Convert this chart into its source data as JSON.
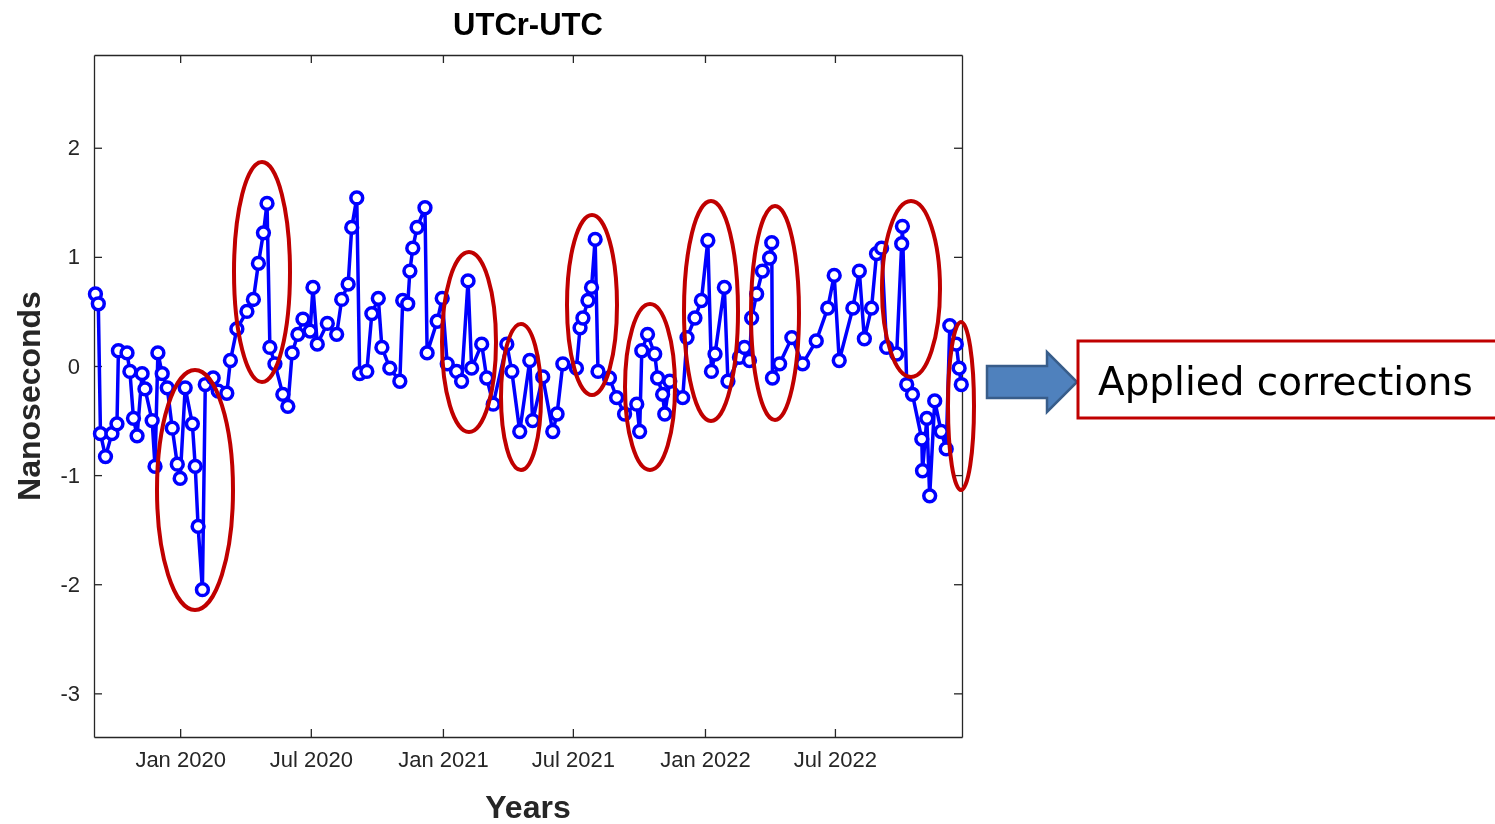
{
  "chart_data": {
    "type": "line",
    "title": "UTCr-UTC",
    "xlabel": "Years",
    "ylabel": "Nanoseconds",
    "annotations": [
      "Applied corrections"
    ],
    "xlim": [
      "2019-09-03",
      "2022-12-25"
    ],
    "xticks": [
      {
        "value": "2020-01-01",
        "label": "Jan 2020"
      },
      {
        "value": "2020-07-01",
        "label": "Jul 2020"
      },
      {
        "value": "2021-01-01",
        "label": "Jan 2021"
      },
      {
        "value": "2021-07-01",
        "label": "Jul 2021"
      },
      {
        "value": "2022-01-01",
        "label": "Jan 2022"
      },
      {
        "value": "2022-07-01",
        "label": "Jul 2022"
      }
    ],
    "ylim": [
      -3.4,
      2.85
    ],
    "yticks": [
      -3,
      -2,
      -1,
      0,
      1,
      2
    ],
    "grid": false,
    "marker": "circle",
    "line_style": "solid",
    "series": [
      {
        "color": "#0000ff",
        "x": [
          "2019-09-05",
          "2019-09-09",
          "2019-09-12",
          "2019-09-19",
          "2019-09-28",
          "2019-10-05",
          "2019-10-07",
          "2019-10-19",
          "2019-10-23",
          "2019-10-28",
          "2019-11-02",
          "2019-11-09",
          "2019-11-13",
          "2019-11-23",
          "2019-11-27",
          "2019-12-01",
          "2019-12-07",
          "2019-12-14",
          "2019-12-21",
          "2019-12-28",
          "2020-01-01",
          "2020-01-08",
          "2020-01-18",
          "2020-01-22",
          "2020-01-26",
          "2020-02-01",
          "2020-02-05",
          "2020-02-16",
          "2020-02-23",
          "2020-03-06",
          "2020-03-11",
          "2020-03-20",
          "2020-04-03",
          "2020-04-12",
          "2020-04-19",
          "2020-04-26",
          "2020-05-01",
          "2020-05-05",
          "2020-05-12",
          "2020-05-23",
          "2020-05-30",
          "2020-06-05",
          "2020-06-13",
          "2020-06-20",
          "2020-06-30",
          "2020-07-04",
          "2020-07-10",
          "2020-07-24",
          "2020-08-06",
          "2020-08-13",
          "2020-08-22",
          "2020-08-27",
          "2020-09-03",
          "2020-09-07",
          "2020-09-17",
          "2020-09-24",
          "2020-10-03",
          "2020-10-08",
          "2020-10-19",
          "2020-11-02",
          "2020-11-06",
          "2020-11-13",
          "2020-11-16",
          "2020-11-20",
          "2020-11-26",
          "2020-12-07",
          "2020-12-10",
          "2020-12-24",
          "2020-12-31",
          "2021-01-07",
          "2021-01-20",
          "2021-01-27",
          "2021-02-05",
          "2021-02-10",
          "2021-02-24",
          "2021-03-03",
          "2021-03-12",
          "2021-03-31",
          "2021-04-07",
          "2021-04-18",
          "2021-05-02",
          "2021-05-06",
          "2021-05-20",
          "2021-06-03",
          "2021-06-09",
          "2021-06-17",
          "2021-07-06",
          "2021-07-11",
          "2021-07-15",
          "2021-07-22",
          "2021-07-27",
          "2021-08-01",
          "2021-08-05",
          "2021-08-21",
          "2021-08-31",
          "2021-09-11",
          "2021-09-28",
          "2021-10-02",
          "2021-10-05",
          "2021-10-13",
          "2021-10-23",
          "2021-10-27",
          "2021-11-03",
          "2021-11-06",
          "2021-11-13",
          "2021-12-01",
          "2021-12-07",
          "2021-12-18",
          "2021-12-27",
          "2022-01-05",
          "2022-01-10",
          "2022-01-15",
          "2022-01-28",
          "2022-02-02",
          "2022-02-18",
          "2022-02-25",
          "2022-03-04",
          "2022-03-07",
          "2022-03-14",
          "2022-03-22",
          "2022-04-01",
          "2022-04-04",
          "2022-04-05",
          "2022-04-15",
          "2022-05-02",
          "2022-05-17",
          "2022-06-05",
          "2022-06-21",
          "2022-06-30",
          "2022-07-07",
          "2022-07-26",
          "2022-08-04",
          "2022-08-11",
          "2022-08-21",
          "2022-08-28",
          "2022-09-04",
          "2022-09-11",
          "2022-09-25",
          "2022-10-02",
          "2022-10-03",
          "2022-10-09",
          "2022-10-17",
          "2022-10-30",
          "2022-10-31",
          "2022-11-06",
          "2022-11-10",
          "2022-11-17",
          "2022-11-26",
          "2022-12-03",
          "2022-12-08",
          "2022-12-17",
          "2022-12-21",
          "2022-12-24"
        ],
        "values": [
          0.66,
          0.57,
          -0.62,
          -0.83,
          -0.62,
          -0.53,
          0.14,
          0.12,
          -0.05,
          -0.48,
          -0.64,
          -0.07,
          -0.21,
          -0.5,
          -0.92,
          0.12,
          -0.07,
          -0.2,
          -0.57,
          -0.9,
          -1.03,
          -0.2,
          -0.53,
          -0.92,
          -1.47,
          -2.05,
          -0.17,
          -0.11,
          -0.23,
          -0.25,
          0.05,
          0.34,
          0.5,
          0.61,
          0.94,
          1.22,
          1.49,
          0.17,
          0.02,
          -0.26,
          -0.37,
          0.12,
          0.29,
          0.43,
          0.32,
          0.72,
          0.2,
          0.39,
          0.29,
          0.61,
          0.75,
          1.27,
          1.54,
          -0.07,
          -0.05,
          0.48,
          0.62,
          0.17,
          -0.02,
          -0.14,
          0.6,
          0.57,
          0.87,
          1.08,
          1.27,
          1.45,
          0.12,
          0.41,
          0.62,
          0.02,
          -0.05,
          -0.14,
          0.78,
          -0.02,
          0.2,
          -0.11,
          -0.35,
          0.2,
          -0.05,
          -0.6,
          0.05,
          -0.5,
          -0.1,
          -0.6,
          -0.44,
          0.02,
          -0.02,
          0.35,
          0.44,
          0.6,
          0.72,
          1.16,
          -0.05,
          -0.11,
          -0.29,
          -0.44,
          -0.35,
          -0.6,
          0.14,
          0.29,
          0.11,
          -0.11,
          -0.26,
          -0.44,
          -0.14,
          -0.29,
          0.26,
          0.44,
          0.6,
          1.15,
          -0.05,
          0.11,
          0.72,
          -0.14,
          0.08,
          0.17,
          0.05,
          0.44,
          0.66,
          0.87,
          0.99,
          1.13,
          -0.11,
          0.02,
          0.26,
          0.02,
          0.23,
          0.53,
          0.83,
          0.05,
          0.53,
          0.87,
          0.25,
          0.53,
          1.03,
          1.08,
          0.17,
          0.11,
          1.12,
          1.28,
          -0.17,
          -0.26,
          -0.67,
          -0.96,
          -0.48,
          -1.19,
          -0.32,
          -0.6,
          -0.76,
          0.37,
          0.2,
          -0.02,
          -0.17
        ]
      }
    ]
  }
}
